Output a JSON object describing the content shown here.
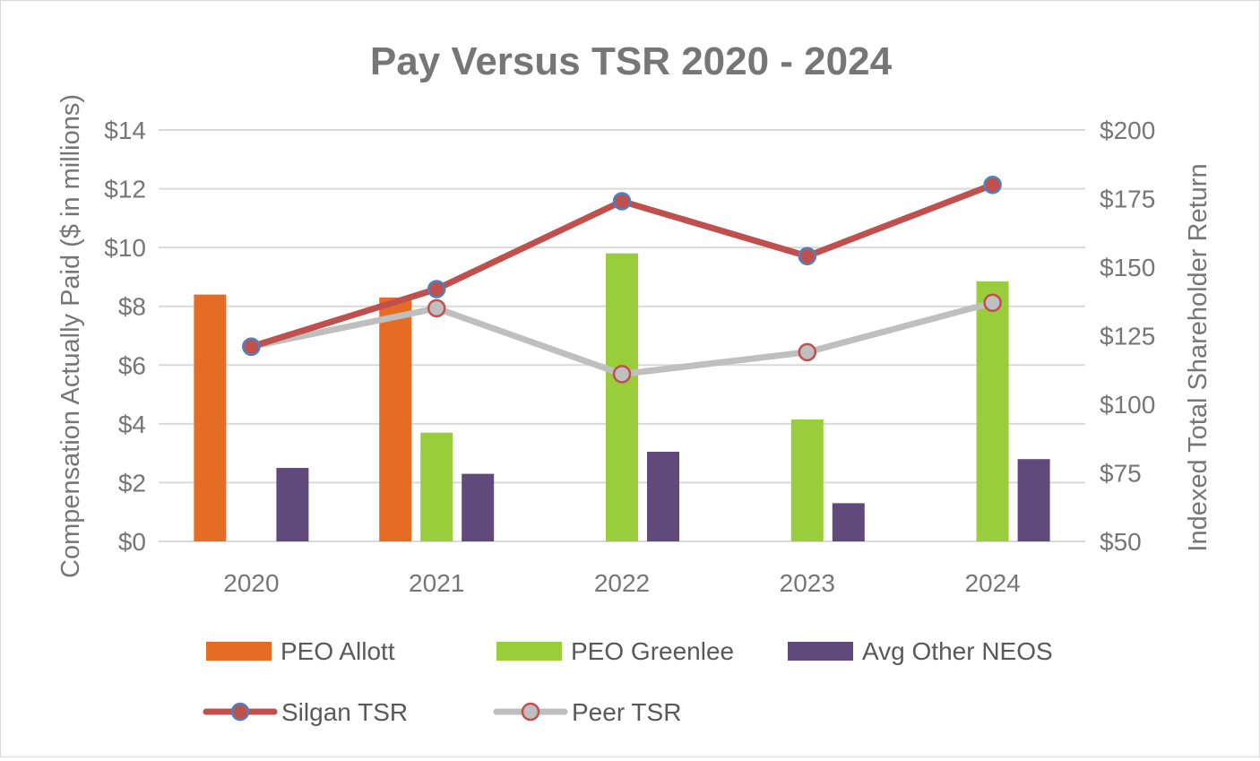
{
  "chart_data": {
    "type": "bar",
    "title": "Pay Versus TSR 2020 - 2024",
    "categories": [
      "2020",
      "2021",
      "2022",
      "2023",
      "2024"
    ],
    "ylabel": "Compensation Actually Paid ($ in millions)",
    "y2label": "Indexed Total Shareholder Return",
    "ylim": [
      0,
      14
    ],
    "y2lim": [
      50,
      200
    ],
    "yticks": [
      "$0",
      "$2",
      "$4",
      "$6",
      "$8",
      "$10",
      "$12",
      "$14"
    ],
    "y2ticks": [
      "$50",
      "$75",
      "$100",
      "$125",
      "$150",
      "$175",
      "$200"
    ],
    "grid": true,
    "legend_position": "bottom",
    "bar_series": [
      {
        "name": "PEO Allott",
        "color": "#e46c25",
        "values": [
          8.4,
          8.3,
          null,
          null,
          null
        ]
      },
      {
        "name": "PEO Greenlee",
        "color": "#9acd3c",
        "values": [
          null,
          3.7,
          9.8,
          4.15,
          8.85
        ]
      },
      {
        "name": "Avg Other NEOS",
        "color": "#604a7b",
        "values": [
          2.5,
          2.3,
          3.05,
          1.3,
          2.8
        ]
      }
    ],
    "line_series": [
      {
        "name": "Silgan TSR",
        "color": "#c0504d",
        "marker_fill": "#c0504d",
        "marker_edge": "#4f81bd",
        "axis": "right",
        "values": [
          121,
          142,
          174,
          154,
          180
        ]
      },
      {
        "name": "Peer TSR",
        "color": "#bfbfbf",
        "marker_fill": "#bfbfbf",
        "marker_edge": "#c0504d",
        "axis": "right",
        "values": [
          121,
          135,
          111,
          119,
          137
        ]
      }
    ]
  }
}
